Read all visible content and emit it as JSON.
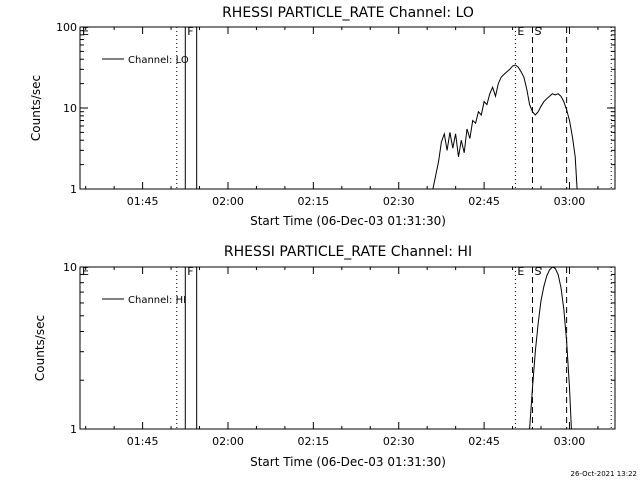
{
  "timestamp": "26-Oct-2021 13:22",
  "chart_data": [
    {
      "type": "line",
      "title": "RHESSI PARTICLE_RATE Channel: LO",
      "xlabel": "Start Time (06-Dec-03 01:31:30)",
      "ylabel": "Counts/sec",
      "yscale": "log",
      "ylim": [
        1,
        100
      ],
      "xlim": [
        "01:34:00",
        "03:08:00"
      ],
      "xticks": [
        "01:45",
        "02:00",
        "02:15",
        "02:30",
        "02:45",
        "03:00"
      ],
      "yticks": [
        "1",
        "10",
        "100"
      ],
      "legend": {
        "position": "top-left",
        "entries": [
          "Channel: LO"
        ]
      },
      "series": [
        {
          "name": "Channel: LO",
          "x": [
            "02:36:00",
            "02:37:00",
            "02:37:30",
            "02:38:00",
            "02:38:30",
            "02:39:00",
            "02:39:30",
            "02:40:00",
            "02:40:30",
            "02:41:00",
            "02:41:30",
            "02:42:00",
            "02:42:30",
            "02:43:00",
            "02:43:30",
            "02:44:00",
            "02:44:30",
            "02:45:00",
            "02:45:30",
            "02:46:00",
            "02:46:30",
            "02:47:00",
            "02:47:30",
            "02:48:00",
            "02:48:30",
            "02:49:00",
            "02:49:30",
            "02:50:00",
            "02:50:30",
            "02:51:00",
            "02:51:30",
            "02:52:00",
            "02:52:30",
            "02:53:00",
            "02:53:30",
            "02:54:00",
            "02:54:30",
            "02:55:00",
            "02:55:30",
            "02:56:00",
            "02:56:30",
            "02:57:00",
            "02:57:30",
            "02:58:00",
            "02:58:30",
            "02:59:00",
            "02:59:30",
            "03:00:00",
            "03:00:30",
            "03:01:00",
            "03:01:20"
          ],
          "y": [
            1.0,
            2.2,
            3.8,
            4.8,
            3.0,
            5.0,
            3.2,
            4.8,
            2.5,
            4.0,
            2.8,
            5.5,
            4.2,
            7.0,
            6.5,
            9.0,
            8.2,
            12.0,
            11.0,
            15.0,
            18.0,
            14.0,
            20.0,
            24.0,
            26.0,
            28.0,
            30.0,
            33.0,
            34.0,
            32.0,
            28.0,
            24.0,
            17.0,
            11.0,
            9.0,
            8.2,
            9.0,
            10.5,
            12.0,
            13.0,
            14.0,
            15.0,
            14.5,
            15.0,
            14.0,
            12.0,
            9.5,
            7.0,
            4.5,
            2.5,
            1.0
          ]
        }
      ],
      "flags": [
        {
          "label": "E",
          "time": "01:34:00",
          "style": "dotted"
        },
        {
          "label": "",
          "time": "01:51:00",
          "style": "dotted"
        },
        {
          "label": "F",
          "time": "01:52:30",
          "style": "solid"
        },
        {
          "label": "",
          "time": "01:54:30",
          "style": "solid"
        },
        {
          "label": "E",
          "time": "02:50:30",
          "style": "dotted"
        },
        {
          "label": "S",
          "time": "02:53:30",
          "style": "dashed"
        },
        {
          "label": "",
          "time": "02:59:30",
          "style": "dashed"
        },
        {
          "label": "",
          "time": "03:07:20",
          "style": "dotted"
        }
      ]
    },
    {
      "type": "line",
      "title": "RHESSI PARTICLE_RATE Channel: HI",
      "xlabel": "Start Time (06-Dec-03 01:31:30)",
      "ylabel": "Counts/sec",
      "yscale": "log",
      "ylim": [
        1,
        10
      ],
      "xlim": [
        "01:34:00",
        "03:08:00"
      ],
      "xticks": [
        "01:45",
        "02:00",
        "02:15",
        "02:30",
        "02:45",
        "03:00"
      ],
      "yticks": [
        "1",
        "10"
      ],
      "legend": {
        "position": "top-left",
        "entries": [
          "Channel: HI"
        ]
      },
      "series": [
        {
          "name": "Channel: HI",
          "x": [
            "02:53:00",
            "02:53:30",
            "02:54:00",
            "02:54:30",
            "02:55:00",
            "02:55:30",
            "02:56:00",
            "02:56:30",
            "02:57:00",
            "02:57:30",
            "02:58:00",
            "02:58:30",
            "02:59:00",
            "02:59:30",
            "03:00:00",
            "03:00:20"
          ],
          "y": [
            1.0,
            1.8,
            3.0,
            4.5,
            6.2,
            7.6,
            8.8,
            9.6,
            10.0,
            9.8,
            9.0,
            7.5,
            5.5,
            3.5,
            1.8,
            1.0
          ]
        }
      ],
      "flags": [
        {
          "label": "E",
          "time": "01:34:00",
          "style": "dotted"
        },
        {
          "label": "",
          "time": "01:51:00",
          "style": "dotted"
        },
        {
          "label": "F",
          "time": "01:52:30",
          "style": "solid"
        },
        {
          "label": "",
          "time": "01:54:30",
          "style": "solid"
        },
        {
          "label": "E",
          "time": "02:50:30",
          "style": "dotted"
        },
        {
          "label": "S",
          "time": "02:53:30",
          "style": "dashed"
        },
        {
          "label": "",
          "time": "02:59:30",
          "style": "dashed"
        },
        {
          "label": "",
          "time": "03:07:20",
          "style": "dotted"
        }
      ]
    }
  ]
}
